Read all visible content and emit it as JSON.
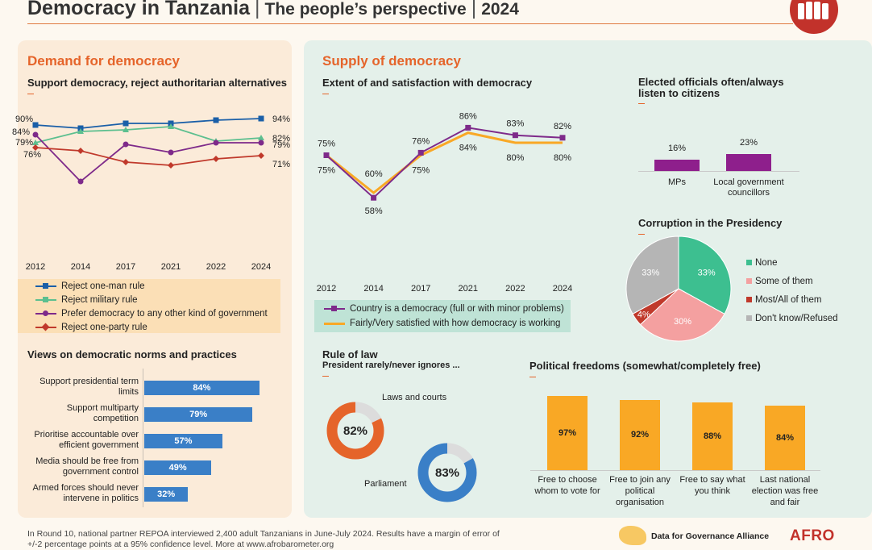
{
  "header": {
    "title": "Democracy in Tanzania",
    "subtitle": "The people’s perspective",
    "year": "2024",
    "separator": "|"
  },
  "left": {
    "section_title": "Demand for democracy",
    "norms_title": "Views on democratic norms and practices"
  },
  "right": {
    "section_title": "Supply of democracy",
    "rule_of_law_title": "Rule of law",
    "rule_of_law_subtitle": "President rarely/never ignores ..."
  },
  "footer": {
    "line1": "In Round 10, national partner REPOA interviewed 2,400 adult Tanzanians in June-July 2024. Results have a margin of error of",
    "line2": "+/-2 percentage points at a 95% confidence level. More at www.afrobarometer.org",
    "partner": "Data for Governance Alliance",
    "brand": "AFRO"
  },
  "colors": {
    "orange": "#e5642a",
    "blue": "#1a5fa8",
    "teal": "#5cbf8f",
    "purple": "#7e2a8a",
    "red": "#c0392b",
    "gold": "#f9a825",
    "magenta": "#8e1f8c"
  },
  "chart_data": [
    {
      "id": "demand",
      "type": "line",
      "title": "Support democracy, reject authoritarian alternatives",
      "x": [
        "2012",
        "2014",
        "2017",
        "2021",
        "2022",
        "2024"
      ],
      "ylim": [
        0,
        100
      ],
      "series": [
        {
          "name": "Reject one-man rule",
          "values": [
            90,
            88,
            91,
            91,
            93,
            94
          ],
          "color": "#1a5fa8",
          "marker": "square"
        },
        {
          "name": "Reject military rule",
          "values": [
            79,
            86,
            87,
            89,
            80,
            82
          ],
          "color": "#5cbf8f",
          "marker": "triangle"
        },
        {
          "name": "Prefer democracy to any other kind of government",
          "values": [
            84,
            55,
            78,
            73,
            79,
            79
          ],
          "color": "#7e2a8a",
          "marker": "circle"
        },
        {
          "name": "Reject one-party rule",
          "values": [
            76,
            74,
            67,
            65,
            69,
            71
          ],
          "color": "#c0392b",
          "marker": "diamond"
        }
      ],
      "point_labels": {
        "first": [
          "90%",
          "79%",
          "84%",
          "76%"
        ],
        "last": [
          "94%",
          "82%",
          "79%",
          "71%"
        ]
      }
    },
    {
      "id": "norms",
      "type": "bar",
      "orientation": "horizontal",
      "categories": [
        "Support presidential term limits",
        "Support multiparty competition",
        "Prioritise accountable over efficient government",
        "Media should be free from government control",
        "Armed forces should never intervene in politics"
      ],
      "category_lines": [
        [
          "Support presidential term",
          "limits"
        ],
        [
          "Support multiparty",
          "competition"
        ],
        [
          "Prioritise accountable over",
          "efficient government"
        ],
        [
          "Media should be free from",
          "government control"
        ],
        [
          "Armed forces should never",
          "intervene in politics"
        ]
      ],
      "values": [
        84,
        79,
        57,
        49,
        32
      ],
      "labels": [
        "84%",
        "79%",
        "57%",
        "49%",
        "32%"
      ]
    },
    {
      "id": "supply",
      "type": "line",
      "title": "Extent of and satisfaction with democracy",
      "x": [
        "2012",
        "2014",
        "2017",
        "2021",
        "2022",
        "2024"
      ],
      "ylim": [
        0,
        100
      ],
      "series": [
        {
          "name": "Country is a democracy (full or with minor problems)",
          "values": [
            75,
            58,
            76,
            86,
            83,
            82
          ],
          "labels": [
            "75%",
            "58%",
            "76%",
            "86%",
            "83%",
            "82%"
          ],
          "color": "#7e2a8a"
        },
        {
          "name": "Fairly/Very satisfied with how democracy is working",
          "values": [
            75,
            60,
            75,
            84,
            80,
            80
          ],
          "labels": [
            "75%",
            "60%",
            "75%",
            "84%",
            "80%",
            "80%"
          ],
          "color": "#f9a825"
        }
      ]
    },
    {
      "id": "officials",
      "type": "bar",
      "title": "Elected officials often/always listen to citizens",
      "title_lines": [
        "Elected officials often/always",
        "listen to citizens"
      ],
      "categories": [
        "MPs",
        "Local government councillors"
      ],
      "category_lines": [
        [
          "MPs"
        ],
        [
          "Local government",
          "councillors"
        ]
      ],
      "values": [
        16,
        23
      ],
      "labels": [
        "16%",
        "23%"
      ]
    },
    {
      "id": "corruption",
      "type": "pie",
      "title": "Corruption in the Presidency",
      "categories": [
        "None",
        "Some of them",
        "Most/All of them",
        "Don't know/Refused"
      ],
      "values": [
        33,
        30,
        4,
        33
      ],
      "labels": [
        "33%",
        "30%",
        "4%",
        "33%"
      ],
      "colors": [
        "#3dbf90",
        "#f4a0a0",
        "#c0392b",
        "#b5b5b5"
      ]
    },
    {
      "id": "rule_of_law",
      "type": "pie",
      "subtype": "donut",
      "categories": [
        "Laws and courts",
        "Parliament"
      ],
      "values": [
        82,
        83
      ],
      "labels": [
        "82%",
        "83%"
      ],
      "colors": [
        "#e5642a",
        "#3a7fc7"
      ]
    },
    {
      "id": "freedoms",
      "type": "bar",
      "title": "Political freedoms (somewhat/completely free)",
      "categories": [
        "Free to choose whom to vote for",
        "Free to join any political organisation",
        "Free to say what you think",
        "Last national election was free and fair"
      ],
      "category_lines": [
        [
          "Free to choose",
          "whom to vote for"
        ],
        [
          "Free to join any",
          "political",
          "organisation"
        ],
        [
          "Free to say what",
          "you think"
        ],
        [
          "Last national",
          "election was free",
          "and fair"
        ]
      ],
      "values": [
        97,
        92,
        88,
        84
      ],
      "labels": [
        "97%",
        "92%",
        "88%",
        "84%"
      ]
    }
  ]
}
